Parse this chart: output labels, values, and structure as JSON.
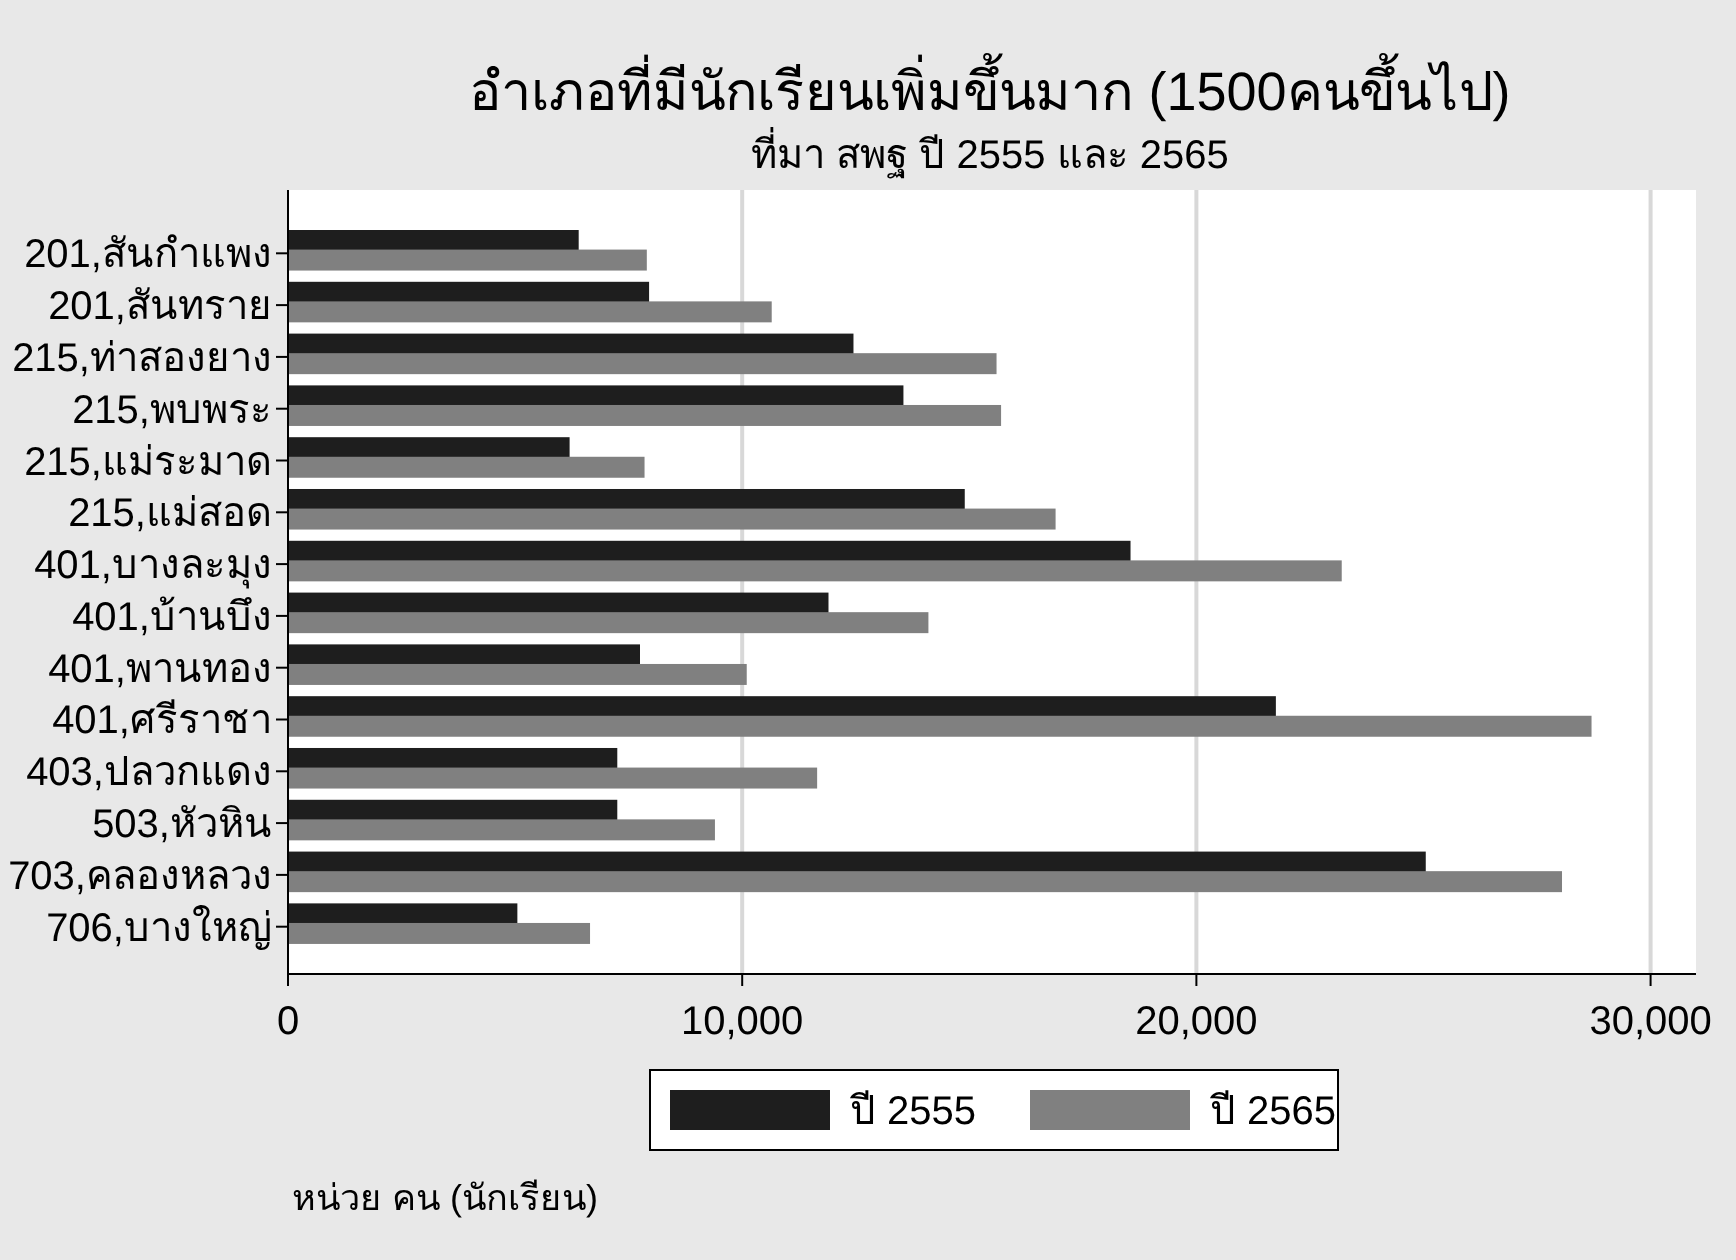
{
  "chart_data": {
    "type": "bar",
    "orientation": "horizontal",
    "title": "อำเภอที่มีนักเรียนเพิ่มขึ้นมาก (1500คนขึ้นไป)",
    "subtitle": "ที่มา สพฐ ปี 2555 และ 2565",
    "categories": [
      "201,สันกำแพง",
      "201,สันทราย",
      "215,ท่าสองยาง",
      "215,พบพระ",
      "215,แม่ระมาด",
      "215,แม่สอด",
      "401,บางละมุง",
      "401,บ้านบึง",
      "401,พานทอง",
      "401,ศรีราชา",
      "403,ปลวกแดง",
      "503,หัวหิน",
      "703,คลองหลวง",
      "706,บางใหญ่"
    ],
    "series": [
      {
        "name": "ปี 2555",
        "color": "#1e1e1e",
        "values": [
          6400,
          7950,
          12450,
          13550,
          6200,
          14900,
          18550,
          11900,
          7750,
          21750,
          7250,
          7250,
          25050,
          5050
        ]
      },
      {
        "name": "ปี 2565",
        "color": "#808080",
        "values": [
          7900,
          10650,
          15600,
          15700,
          7850,
          16900,
          23200,
          14100,
          10100,
          28700,
          11650,
          9400,
          28050,
          6650
        ]
      }
    ],
    "xlim": [
      0,
      31000
    ],
    "xticks": [
      0,
      {
        "value": 10000,
        "label": "10,000"
      },
      {
        "value": 20000,
        "label": "20,000"
      },
      {
        "value": 30000,
        "label": "30,000"
      }
    ],
    "grid": "x",
    "legend": "bottom",
    "annotations": [
      "หน่วย คน (นักเรียน)"
    ]
  }
}
